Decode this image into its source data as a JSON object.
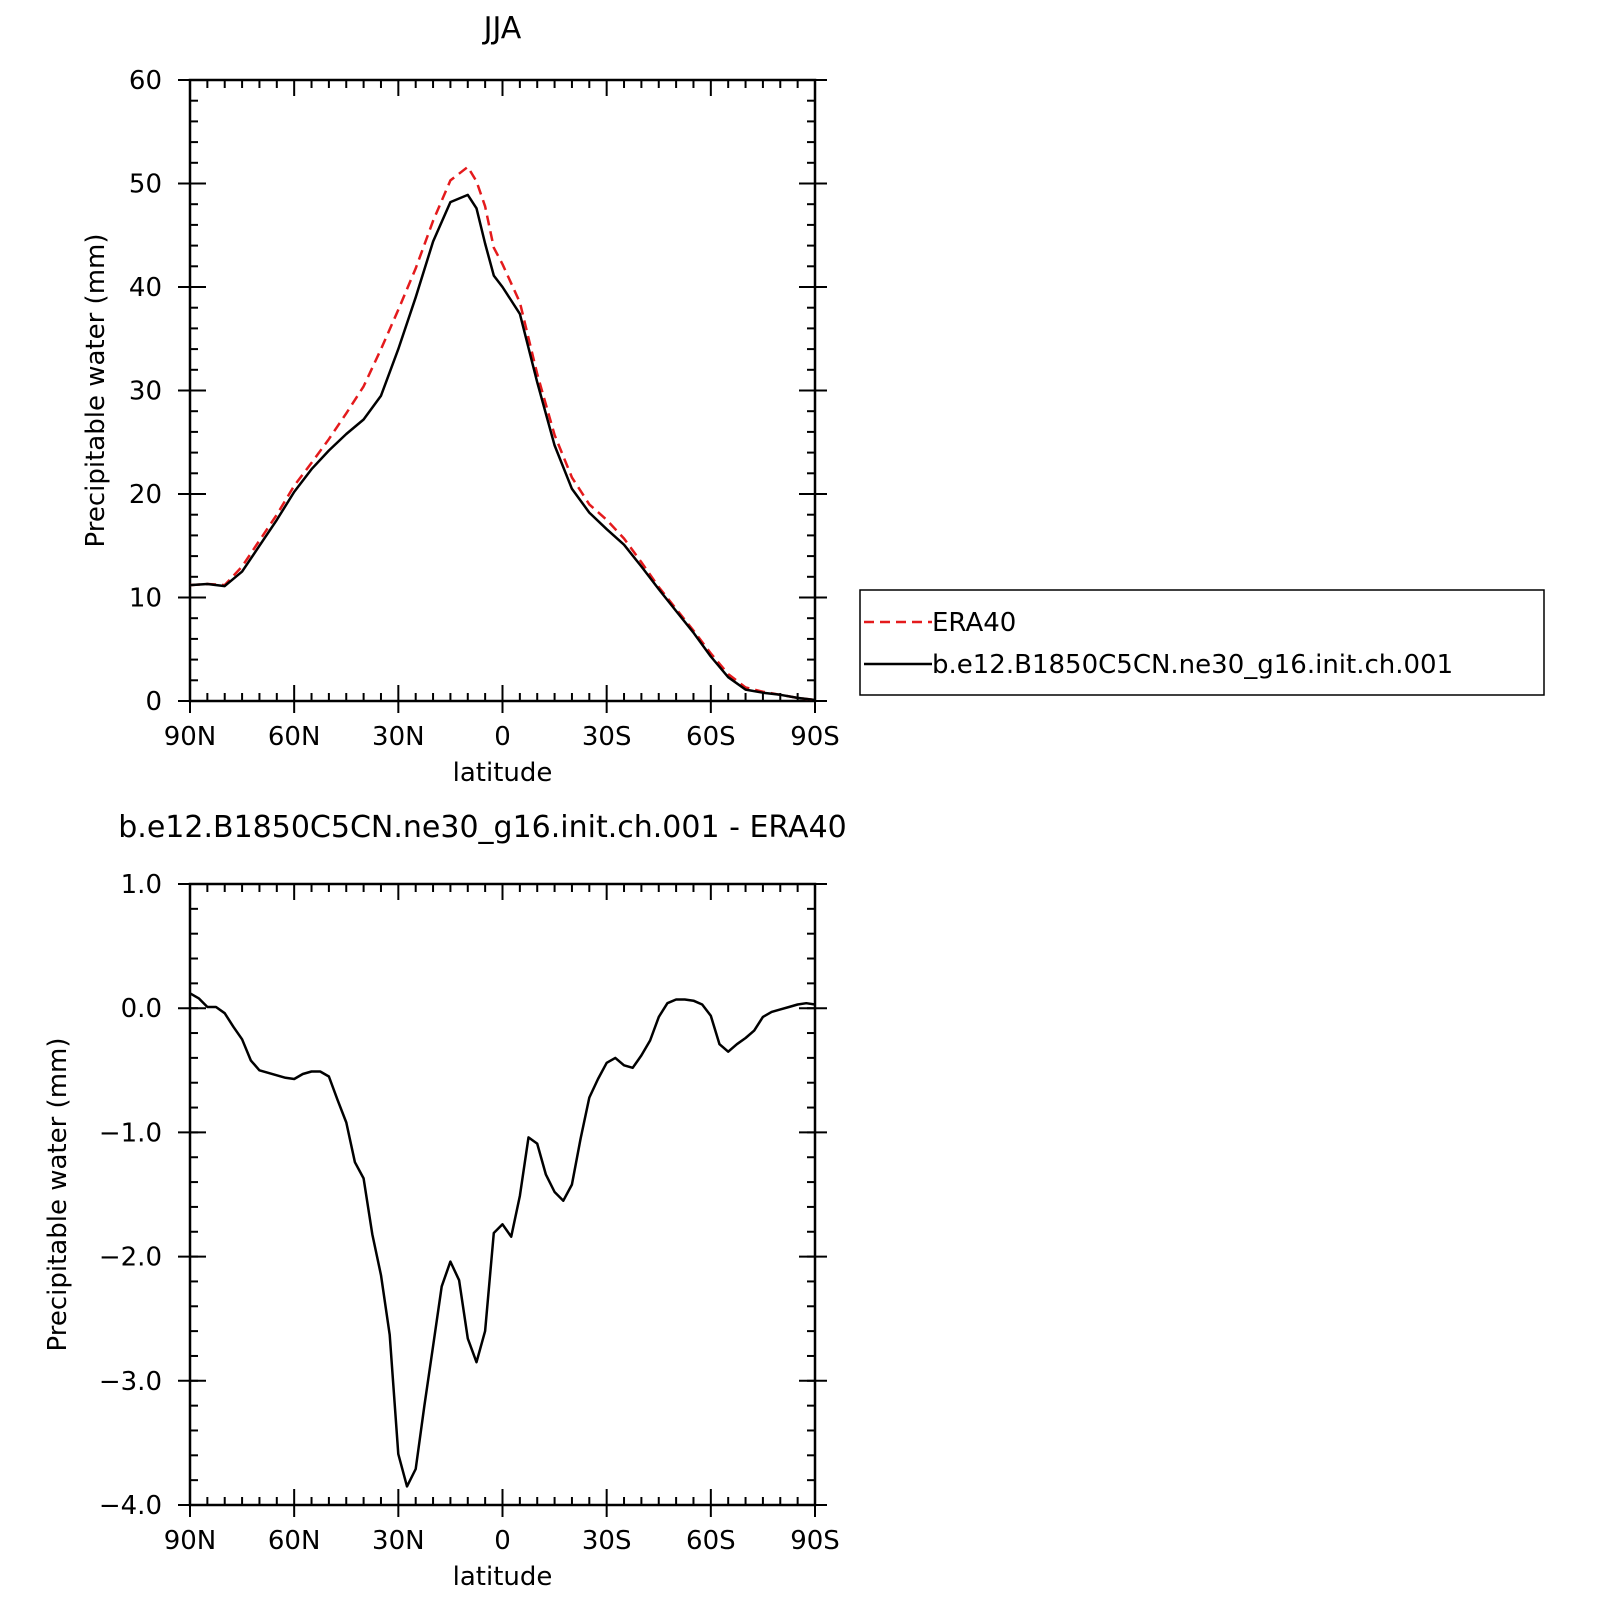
{
  "chart_data": [
    {
      "type": "line",
      "title": "JJA",
      "xlabel": "latitude",
      "ylabel": "Precipitable water (mm)",
      "xlim": [
        90,
        -90
      ],
      "ylim": [
        0,
        60
      ],
      "x_ticks": [
        90,
        60,
        30,
        0,
        -30,
        -60,
        -90
      ],
      "x_tick_labels": [
        "90N",
        "60N",
        "30N",
        "0",
        "30S",
        "60S",
        "90S"
      ],
      "y_ticks": [
        0,
        10,
        20,
        30,
        40,
        50,
        60
      ],
      "y_tick_labels": [
        "0",
        "10",
        "20",
        "30",
        "40",
        "50",
        "60"
      ],
      "grid": false,
      "legend_position": "right",
      "series": [
        {
          "name": "ERA40",
          "color": "#e41a1c",
          "dash": "dashed",
          "x": [
            90,
            85,
            80,
            75,
            70,
            65,
            60,
            55,
            50,
            45,
            40,
            35,
            30,
            25,
            20,
            15,
            10,
            7.5,
            5,
            2.5,
            0,
            -5,
            -10,
            -15,
            -20,
            -25,
            -30,
            -35,
            -40,
            -45,
            -50,
            -55,
            -60,
            -65,
            -70,
            -75,
            -80,
            -85,
            -90
          ],
          "values": [
            11.2,
            11.3,
            11.2,
            13.0,
            15.5,
            18.0,
            20.8,
            23.0,
            25.3,
            27.8,
            30.4,
            34.0,
            37.8,
            41.8,
            46.4,
            50.3,
            51.6,
            50.2,
            47.8,
            43.8,
            42.2,
            38.5,
            31.6,
            25.7,
            21.6,
            19.0,
            17.5,
            15.7,
            13.4,
            11.0,
            8.9,
            6.8,
            4.6,
            2.6,
            1.3,
            0.9,
            0.6,
            0.3,
            0.1
          ]
        },
        {
          "name": "b.e12.B1850C5CN.ne30_g16.init.ch.001",
          "color": "#000000",
          "dash": "solid",
          "x": [
            90,
            85,
            80,
            75,
            70,
            65,
            60,
            55,
            50,
            45,
            40,
            35,
            30,
            25,
            20,
            15,
            10,
            7.5,
            5,
            2.5,
            0,
            -5,
            -10,
            -15,
            -20,
            -25,
            -30,
            -35,
            -40,
            -45,
            -50,
            -55,
            -60,
            -65,
            -70,
            -75,
            -80,
            -85,
            -90
          ],
          "values": [
            11.2,
            11.3,
            11.1,
            12.5,
            15.0,
            17.5,
            20.2,
            22.4,
            24.2,
            25.8,
            27.2,
            29.5,
            34.0,
            39.0,
            44.4,
            48.2,
            48.9,
            47.6,
            44.2,
            41.1,
            40.0,
            37.4,
            30.8,
            24.7,
            20.5,
            18.2,
            16.6,
            15.1,
            13.0,
            10.8,
            8.7,
            6.6,
            4.3,
            2.3,
            1.1,
            0.8,
            0.6,
            0.3,
            0.1
          ]
        }
      ]
    },
    {
      "type": "line",
      "title": "b.e12.B1850C5CN.ne30_g16.init.ch.001 - ERA40",
      "xlabel": "latitude",
      "ylabel": "Precipitable water (mm)",
      "xlim": [
        90,
        -90
      ],
      "ylim": [
        -4.0,
        1.0
      ],
      "x_ticks": [
        90,
        60,
        30,
        0,
        -30,
        -60,
        -90
      ],
      "x_tick_labels": [
        "90N",
        "60N",
        "30N",
        "0",
        "30S",
        "60S",
        "90S"
      ],
      "y_ticks": [
        -4.0,
        -3.0,
        -2.0,
        -1.0,
        0.0,
        1.0
      ],
      "y_tick_labels": [
        "−4.0",
        "−3.0",
        "−2.0",
        "−1.0",
        "0.0",
        "1.0"
      ],
      "grid": false,
      "series": [
        {
          "color": "#000000",
          "dash": "solid",
          "x": [
            90,
            87.5,
            85,
            82.5,
            80,
            77.5,
            75,
            72.5,
            70,
            65,
            62.5,
            60,
            57.5,
            55,
            52.5,
            50,
            47.5,
            45,
            42.5,
            40,
            37.5,
            35,
            32.5,
            30,
            27.5,
            25,
            22.5,
            20,
            17.5,
            15,
            12.5,
            10,
            7.5,
            5,
            2.5,
            0,
            -2.5,
            -5,
            -7.5,
            -10,
            -12.5,
            -15,
            -17.5,
            -20,
            -22.5,
            -25,
            -27.5,
            -30,
            -32.5,
            -35,
            -37.5,
            -40,
            -42.5,
            -45,
            -47.5,
            -50,
            -52.5,
            -55,
            -57.5,
            -60,
            -62.5,
            -65,
            -67.5,
            -70,
            -72.5,
            -75,
            -77.5,
            -80,
            -82.5,
            -85,
            -87.5,
            -90
          ],
          "values": [
            0.12,
            0.08,
            0.01,
            0.01,
            -0.04,
            -0.15,
            -0.25,
            -0.42,
            -0.5,
            -0.54,
            -0.56,
            -0.57,
            -0.53,
            -0.51,
            -0.51,
            -0.55,
            -0.74,
            -0.92,
            -1.24,
            -1.37,
            -1.82,
            -2.15,
            -2.63,
            -3.59,
            -3.85,
            -3.71,
            -3.2,
            -2.72,
            -2.24,
            -2.04,
            -2.19,
            -2.66,
            -2.85,
            -2.6,
            -1.81,
            -1.74,
            -1.84,
            -1.51,
            -1.04,
            -1.09,
            -1.34,
            -1.48,
            -1.55,
            -1.42,
            -1.05,
            -0.72,
            -0.57,
            -0.44,
            -0.4,
            -0.46,
            -0.48,
            -0.38,
            -0.26,
            -0.07,
            0.04,
            0.07,
            0.07,
            0.06,
            0.03,
            -0.06,
            -0.29,
            -0.35,
            -0.29,
            -0.24,
            -0.18,
            -0.07,
            -0.03,
            -0.01,
            0.01,
            0.03,
            0.04,
            0.03
          ]
        }
      ]
    }
  ]
}
